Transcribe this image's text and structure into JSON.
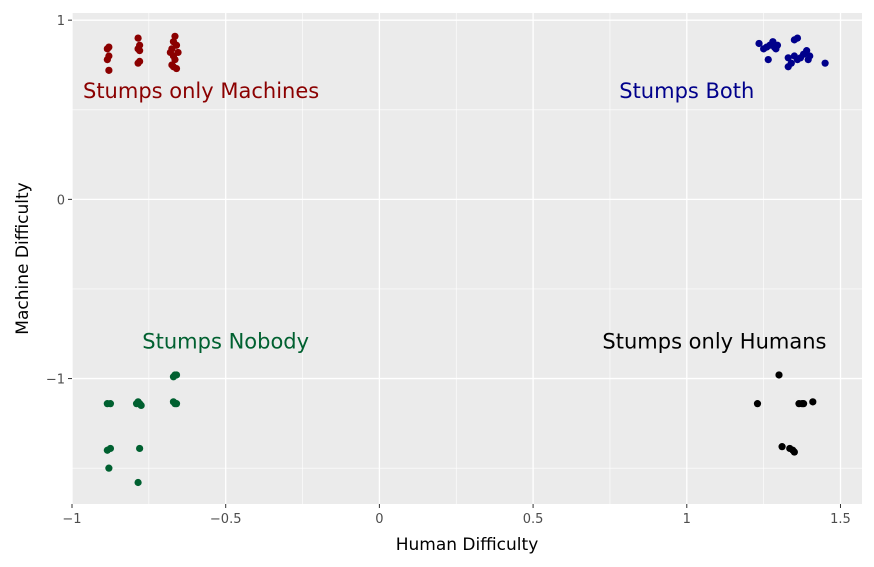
{
  "chart_data": {
    "type": "scatter",
    "title": "",
    "xlabel": "Human Difficulty",
    "ylabel": "Machine Difficulty",
    "xlim": [
      -1,
      1.57
    ],
    "ylim": [
      -1.7,
      1.04
    ],
    "x_ticks": [
      {
        "value": -1,
        "label": "−1"
      },
      {
        "value": -0.5,
        "label": "−0.5"
      },
      {
        "value": 0,
        "label": "0"
      },
      {
        "value": 0.5,
        "label": "0.5"
      },
      {
        "value": 1,
        "label": "1"
      },
      {
        "value": 1.5,
        "label": "1.5"
      }
    ],
    "y_ticks": [
      {
        "value": 1,
        "label": "1"
      },
      {
        "value": 0,
        "label": "0"
      },
      {
        "value": -1,
        "label": "−1"
      }
    ],
    "grid": true,
    "background": "#ebebeb",
    "annotations": [
      {
        "text": "Stumps only Machines",
        "x": -0.58,
        "y": 0.6,
        "color": "#8b0000"
      },
      {
        "text": "Stumps Both",
        "x": 1.0,
        "y": 0.6,
        "color": "#00008b"
      },
      {
        "text": "Stumps Nobody",
        "x": -0.5,
        "y": -0.8,
        "color": "#006030"
      },
      {
        "text": "Stumps only Humans",
        "x": 1.09,
        "y": -0.8,
        "color": "#000000"
      }
    ],
    "series": [
      {
        "color": "#8b0000",
        "points": [
          [
            -0.88,
            0.85
          ],
          [
            -0.885,
            0.84
          ],
          [
            -0.88,
            0.8
          ],
          [
            -0.885,
            0.78
          ],
          [
            -0.88,
            0.72
          ],
          [
            -0.785,
            0.9
          ],
          [
            -0.78,
            0.86
          ],
          [
            -0.785,
            0.84
          ],
          [
            -0.78,
            0.83
          ],
          [
            -0.78,
            0.77
          ],
          [
            -0.785,
            0.76
          ],
          [
            -0.665,
            0.91
          ],
          [
            -0.67,
            0.88
          ],
          [
            -0.66,
            0.86
          ],
          [
            -0.675,
            0.84
          ],
          [
            -0.68,
            0.82
          ],
          [
            -0.655,
            0.82
          ],
          [
            -0.67,
            0.8
          ],
          [
            -0.665,
            0.78
          ],
          [
            -0.675,
            0.75
          ],
          [
            -0.66,
            0.73
          ],
          [
            -0.67,
            0.74
          ]
        ]
      },
      {
        "color": "#00008b",
        "points": [
          [
            1.235,
            0.87
          ],
          [
            1.25,
            0.84
          ],
          [
            1.26,
            0.85
          ],
          [
            1.27,
            0.86
          ],
          [
            1.28,
            0.88
          ],
          [
            1.285,
            0.85
          ],
          [
            1.29,
            0.84
          ],
          [
            1.265,
            0.78
          ],
          [
            1.35,
            0.89
          ],
          [
            1.36,
            0.9
          ],
          [
            1.33,
            0.79
          ],
          [
            1.34,
            0.76
          ],
          [
            1.35,
            0.8
          ],
          [
            1.36,
            0.78
          ],
          [
            1.37,
            0.79
          ],
          [
            1.38,
            0.81
          ],
          [
            1.39,
            0.83
          ],
          [
            1.4,
            0.8
          ],
          [
            1.395,
            0.78
          ],
          [
            1.45,
            0.76
          ],
          [
            1.33,
            0.74
          ],
          [
            1.295,
            0.86
          ]
        ]
      },
      {
        "color": "#006030",
        "points": [
          [
            -0.885,
            -1.14
          ],
          [
            -0.875,
            -1.14
          ],
          [
            -0.885,
            -1.4
          ],
          [
            -0.875,
            -1.39
          ],
          [
            -0.88,
            -1.5
          ],
          [
            -0.79,
            -1.14
          ],
          [
            -0.78,
            -1.14
          ],
          [
            -0.775,
            -1.15
          ],
          [
            -0.785,
            -1.13
          ],
          [
            -0.78,
            -1.39
          ],
          [
            -0.785,
            -1.58
          ],
          [
            -0.665,
            -0.98
          ],
          [
            -0.66,
            -0.98
          ],
          [
            -0.67,
            -0.99
          ],
          [
            -0.665,
            -1.14
          ],
          [
            -0.66,
            -1.14
          ],
          [
            -0.67,
            -1.13
          ]
        ]
      },
      {
        "color": "#000000",
        "points": [
          [
            1.3,
            -0.98
          ],
          [
            1.23,
            -1.14
          ],
          [
            1.365,
            -1.14
          ],
          [
            1.375,
            -1.14
          ],
          [
            1.38,
            -1.14
          ],
          [
            1.41,
            -1.13
          ],
          [
            1.31,
            -1.38
          ],
          [
            1.335,
            -1.39
          ],
          [
            1.345,
            -1.4
          ],
          [
            1.35,
            -1.41
          ]
        ]
      }
    ]
  }
}
